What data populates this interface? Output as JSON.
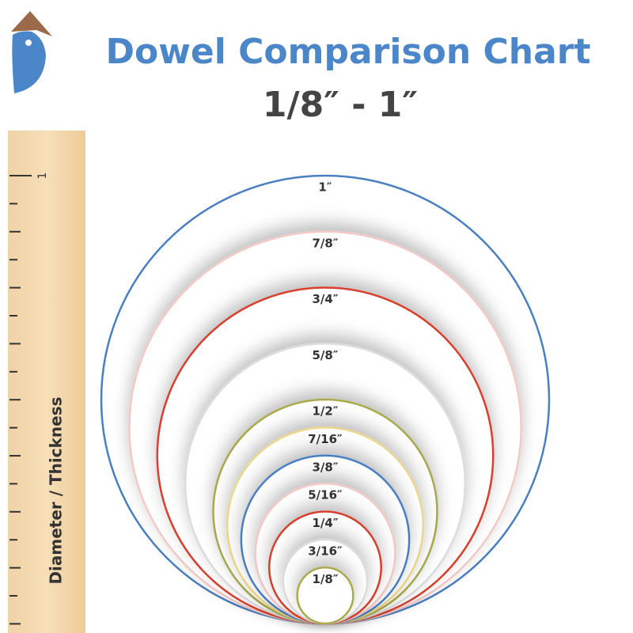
{
  "header": {
    "title": "Dowel Comparison Chart",
    "subtitle": "1/8″ - 1″"
  },
  "ruler": {
    "mark_label": "1",
    "axis_label": "Diameter / Thickness"
  },
  "circles": [
    {
      "label": "1″",
      "color": "#4a7fc1"
    },
    {
      "label": "7/8″",
      "color": "#f3c9c6"
    },
    {
      "label": "3/4″",
      "color": "#d7402e"
    },
    {
      "label": "5/8″",
      "color": "#dcdcdc"
    },
    {
      "label": "1/2″",
      "color": "#a9aa4c"
    },
    {
      "label": "7/16″",
      "color": "#ecd88c"
    },
    {
      "label": "3/8″",
      "color": "#4a7fc1"
    },
    {
      "label": "5/16″",
      "color": "#f3c9c6"
    },
    {
      "label": "1/4″",
      "color": "#d7402e"
    },
    {
      "label": "3/16″",
      "color": "#dcdcdc"
    },
    {
      "label": "1/8″",
      "color": "#a9aa4c"
    }
  ]
}
